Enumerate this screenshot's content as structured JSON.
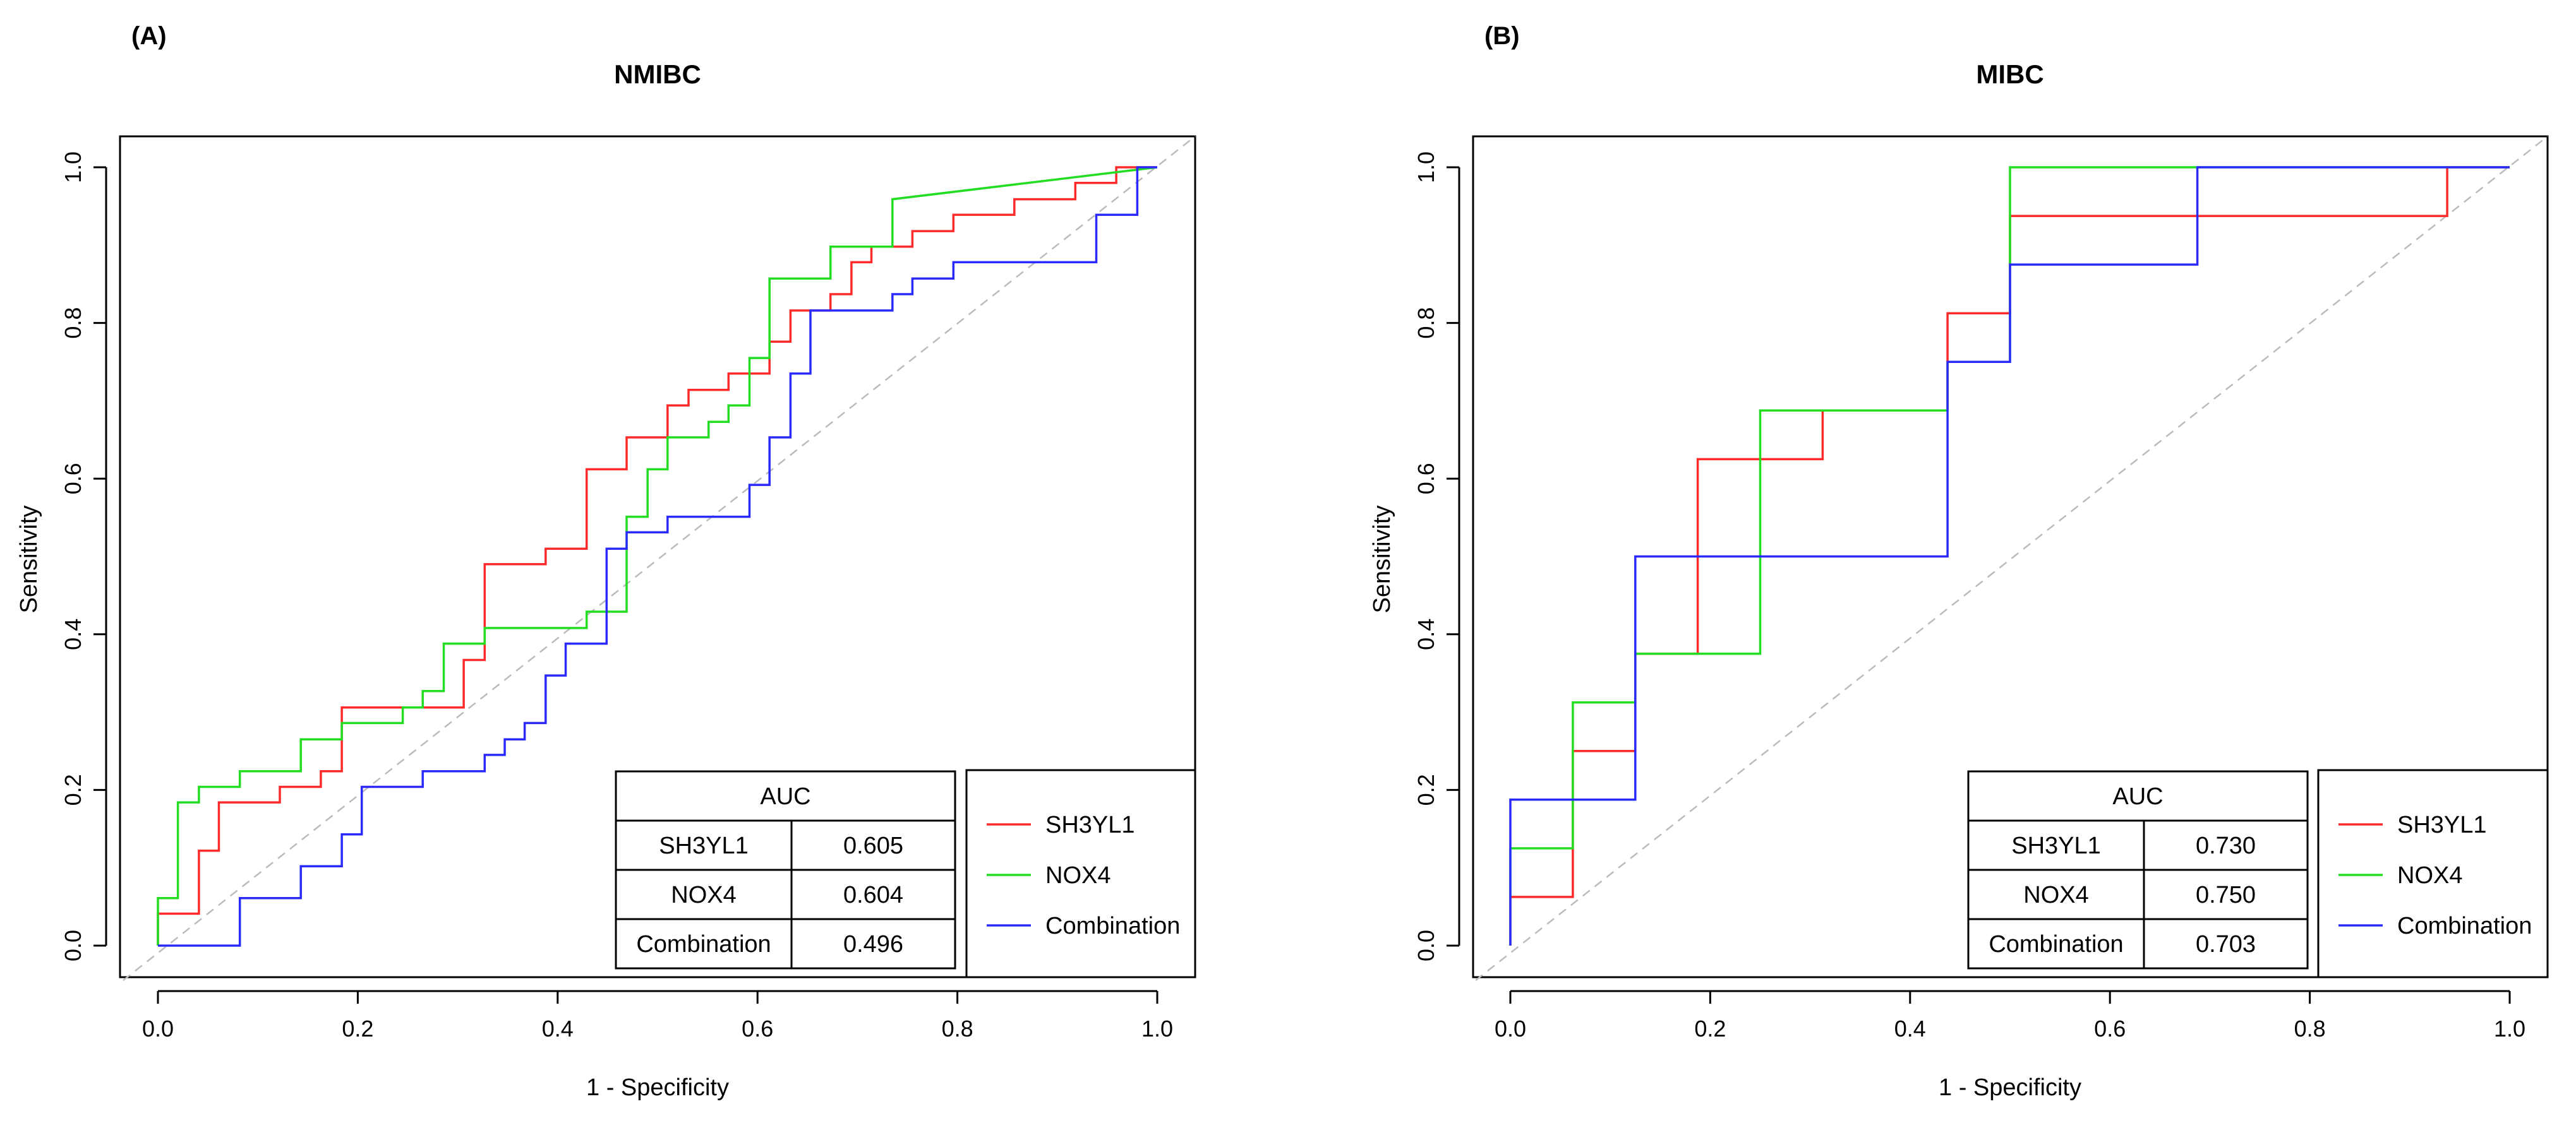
{
  "chart_data": [
    {
      "type": "line",
      "panel_label": "(A)",
      "title": "NMIBC",
      "xlabel": "1 - Specificity",
      "ylabel": "Sensitivity",
      "xlim": [
        0,
        1
      ],
      "ylim": [
        0,
        1
      ],
      "x_ticks": [
        "0.0",
        "0.2",
        "0.4",
        "0.6",
        "0.8",
        "1.0"
      ],
      "y_ticks": [
        "0.0",
        "0.2",
        "0.4",
        "0.6",
        "0.8",
        "1.0"
      ],
      "reference_line": "diagonal",
      "legend": {
        "position": "bottom-right",
        "entries": [
          {
            "name": "SH3YL1",
            "color": "#ff2a2a"
          },
          {
            "name": "NOX4",
            "color": "#22dd22"
          },
          {
            "name": "Combination",
            "color": "#2a2aff"
          }
        ]
      },
      "auc_table": {
        "header": "AUC",
        "rows": [
          {
            "name": "SH3YL1",
            "value": "0.605"
          },
          {
            "name": "NOX4",
            "value": "0.604"
          },
          {
            "name": "Combination",
            "value": "0.496"
          }
        ]
      },
      "series": [
        {
          "name": "SH3YL1",
          "color": "#ff2a2a",
          "points": [
            [
              0,
              0
            ],
            [
              0,
              0.041
            ],
            [
              0.041,
              0.041
            ],
            [
              0.041,
              0.122
            ],
            [
              0.061,
              0.122
            ],
            [
              0.061,
              0.184
            ],
            [
              0.122,
              0.184
            ],
            [
              0.122,
              0.204
            ],
            [
              0.163,
              0.204
            ],
            [
              0.163,
              0.224
            ],
            [
              0.184,
              0.224
            ],
            [
              0.184,
              0.306
            ],
            [
              0.306,
              0.306
            ],
            [
              0.306,
              0.367
            ],
            [
              0.327,
              0.367
            ],
            [
              0.327,
              0.49
            ],
            [
              0.388,
              0.49
            ],
            [
              0.388,
              0.51
            ],
            [
              0.429,
              0.51
            ],
            [
              0.429,
              0.612
            ],
            [
              0.469,
              0.612
            ],
            [
              0.469,
              0.653
            ],
            [
              0.51,
              0.653
            ],
            [
              0.51,
              0.694
            ],
            [
              0.531,
              0.694
            ],
            [
              0.531,
              0.714
            ],
            [
              0.571,
              0.714
            ],
            [
              0.571,
              0.735
            ],
            [
              0.612,
              0.735
            ],
            [
              0.612,
              0.755
            ],
            [
              0.612,
              0.776
            ],
            [
              0.633,
              0.776
            ],
            [
              0.633,
              0.816
            ],
            [
              0.653,
              0.816
            ],
            [
              0.673,
              0.816
            ],
            [
              0.673,
              0.837
            ],
            [
              0.694,
              0.837
            ],
            [
              0.694,
              0.878
            ],
            [
              0.714,
              0.878
            ],
            [
              0.714,
              0.898
            ],
            [
              0.755,
              0.898
            ],
            [
              0.755,
              0.918
            ],
            [
              0.796,
              0.918
            ],
            [
              0.796,
              0.939
            ],
            [
              0.857,
              0.939
            ],
            [
              0.857,
              0.959
            ],
            [
              0.918,
              0.959
            ],
            [
              0.918,
              0.98
            ],
            [
              0.959,
              0.98
            ],
            [
              0.959,
              1
            ],
            [
              1,
              1
            ]
          ]
        },
        {
          "name": "NOX4",
          "color": "#22dd22",
          "points": [
            [
              0,
              0
            ],
            [
              0,
              0.061
            ],
            [
              0.02,
              0.061
            ],
            [
              0.02,
              0.184
            ],
            [
              0.041,
              0.184
            ],
            [
              0.041,
              0.204
            ],
            [
              0.082,
              0.204
            ],
            [
              0.082,
              0.224
            ],
            [
              0.143,
              0.224
            ],
            [
              0.143,
              0.265
            ],
            [
              0.184,
              0.265
            ],
            [
              0.184,
              0.286
            ],
            [
              0.245,
              0.286
            ],
            [
              0.245,
              0.306
            ],
            [
              0.265,
              0.306
            ],
            [
              0.265,
              0.327
            ],
            [
              0.286,
              0.327
            ],
            [
              0.286,
              0.388
            ],
            [
              0.327,
              0.388
            ],
            [
              0.327,
              0.408
            ],
            [
              0.429,
              0.408
            ],
            [
              0.429,
              0.429
            ],
            [
              0.469,
              0.429
            ],
            [
              0.469,
              0.551
            ],
            [
              0.49,
              0.551
            ],
            [
              0.49,
              0.612
            ],
            [
              0.51,
              0.612
            ],
            [
              0.51,
              0.653
            ],
            [
              0.551,
              0.653
            ],
            [
              0.551,
              0.673
            ],
            [
              0.571,
              0.673
            ],
            [
              0.571,
              0.694
            ],
            [
              0.592,
              0.694
            ],
            [
              0.592,
              0.755
            ],
            [
              0.612,
              0.755
            ],
            [
              0.612,
              0.857
            ],
            [
              0.673,
              0.857
            ],
            [
              0.673,
              0.898
            ],
            [
              0.735,
              0.898
            ],
            [
              0.735,
              0.959
            ],
            [
              1,
              1
            ]
          ]
        },
        {
          "name": "Combination",
          "color": "#2a2aff",
          "points": [
            [
              0,
              0
            ],
            [
              0.082,
              0
            ],
            [
              0.082,
              0.061
            ],
            [
              0.143,
              0.061
            ],
            [
              0.143,
              0.102
            ],
            [
              0.184,
              0.102
            ],
            [
              0.184,
              0.143
            ],
            [
              0.204,
              0.143
            ],
            [
              0.204,
              0.204
            ],
            [
              0.265,
              0.204
            ],
            [
              0.265,
              0.224
            ],
            [
              0.327,
              0.224
            ],
            [
              0.327,
              0.245
            ],
            [
              0.347,
              0.245
            ],
            [
              0.347,
              0.265
            ],
            [
              0.367,
              0.265
            ],
            [
              0.367,
              0.286
            ],
            [
              0.388,
              0.286
            ],
            [
              0.388,
              0.347
            ],
            [
              0.408,
              0.347
            ],
            [
              0.408,
              0.388
            ],
            [
              0.449,
              0.388
            ],
            [
              0.449,
              0.51
            ],
            [
              0.469,
              0.51
            ],
            [
              0.469,
              0.531
            ],
            [
              0.51,
              0.531
            ],
            [
              0.51,
              0.551
            ],
            [
              0.592,
              0.551
            ],
            [
              0.592,
              0.592
            ],
            [
              0.612,
              0.592
            ],
            [
              0.612,
              0.653
            ],
            [
              0.633,
              0.653
            ],
            [
              0.633,
              0.735
            ],
            [
              0.653,
              0.735
            ],
            [
              0.653,
              0.816
            ],
            [
              0.735,
              0.816
            ],
            [
              0.735,
              0.837
            ],
            [
              0.755,
              0.837
            ],
            [
              0.755,
              0.857
            ],
            [
              0.796,
              0.857
            ],
            [
              0.796,
              0.878
            ],
            [
              0.939,
              0.878
            ],
            [
              0.939,
              0.939
            ],
            [
              0.98,
              0.939
            ],
            [
              0.98,
              1
            ],
            [
              1,
              1
            ]
          ]
        }
      ]
    },
    {
      "type": "line",
      "panel_label": "(B)",
      "title": "MIBC",
      "xlabel": "1 - Specificity",
      "ylabel": "Sensitivity",
      "xlim": [
        0,
        1
      ],
      "ylim": [
        0,
        1
      ],
      "x_ticks": [
        "0.0",
        "0.2",
        "0.4",
        "0.6",
        "0.8",
        "1.0"
      ],
      "y_ticks": [
        "0.0",
        "0.2",
        "0.4",
        "0.6",
        "0.8",
        "1.0"
      ],
      "reference_line": "diagonal",
      "legend": {
        "position": "bottom-right",
        "entries": [
          {
            "name": "SH3YL1",
            "color": "#ff2a2a"
          },
          {
            "name": "NOX4",
            "color": "#22dd22"
          },
          {
            "name": "Combination",
            "color": "#2a2aff"
          }
        ]
      },
      "auc_table": {
        "header": "AUC",
        "rows": [
          {
            "name": "SH3YL1",
            "value": "0.730"
          },
          {
            "name": "NOX4",
            "value": "0.750"
          },
          {
            "name": "Combination",
            "value": "0.703"
          }
        ]
      },
      "series": [
        {
          "name": "SH3YL1",
          "color": "#ff2a2a",
          "points": [
            [
              0,
              0
            ],
            [
              0,
              0.0625
            ],
            [
              0.0625,
              0.0625
            ],
            [
              0.0625,
              0.25
            ],
            [
              0.125,
              0.25
            ],
            [
              0.125,
              0.375
            ],
            [
              0.1875,
              0.375
            ],
            [
              0.1875,
              0.625
            ],
            [
              0.3125,
              0.625
            ],
            [
              0.3125,
              0.6875
            ],
            [
              0.4375,
              0.6875
            ],
            [
              0.4375,
              0.8125
            ],
            [
              0.5,
              0.8125
            ],
            [
              0.5,
              0.9375
            ],
            [
              0.9375,
              0.9375
            ],
            [
              0.9375,
              1
            ],
            [
              1,
              1
            ]
          ]
        },
        {
          "name": "NOX4",
          "color": "#22dd22",
          "points": [
            [
              0,
              0
            ],
            [
              0,
              0.125
            ],
            [
              0.0625,
              0.125
            ],
            [
              0.0625,
              0.3125
            ],
            [
              0.125,
              0.3125
            ],
            [
              0.125,
              0.375
            ],
            [
              0.25,
              0.375
            ],
            [
              0.25,
              0.6875
            ],
            [
              0.4375,
              0.6875
            ],
            [
              0.4375,
              0.75
            ],
            [
              0.5,
              0.75
            ],
            [
              0.5,
              1
            ],
            [
              1,
              1
            ]
          ]
        },
        {
          "name": "Combination",
          "color": "#2a2aff",
          "points": [
            [
              0,
              0
            ],
            [
              0,
              0.1875
            ],
            [
              0.125,
              0.1875
            ],
            [
              0.125,
              0.5
            ],
            [
              0.4375,
              0.5
            ],
            [
              0.4375,
              0.75
            ],
            [
              0.5,
              0.75
            ],
            [
              0.5,
              0.875
            ],
            [
              0.6875,
              0.875
            ],
            [
              0.6875,
              1
            ],
            [
              1,
              1
            ]
          ]
        }
      ]
    }
  ]
}
